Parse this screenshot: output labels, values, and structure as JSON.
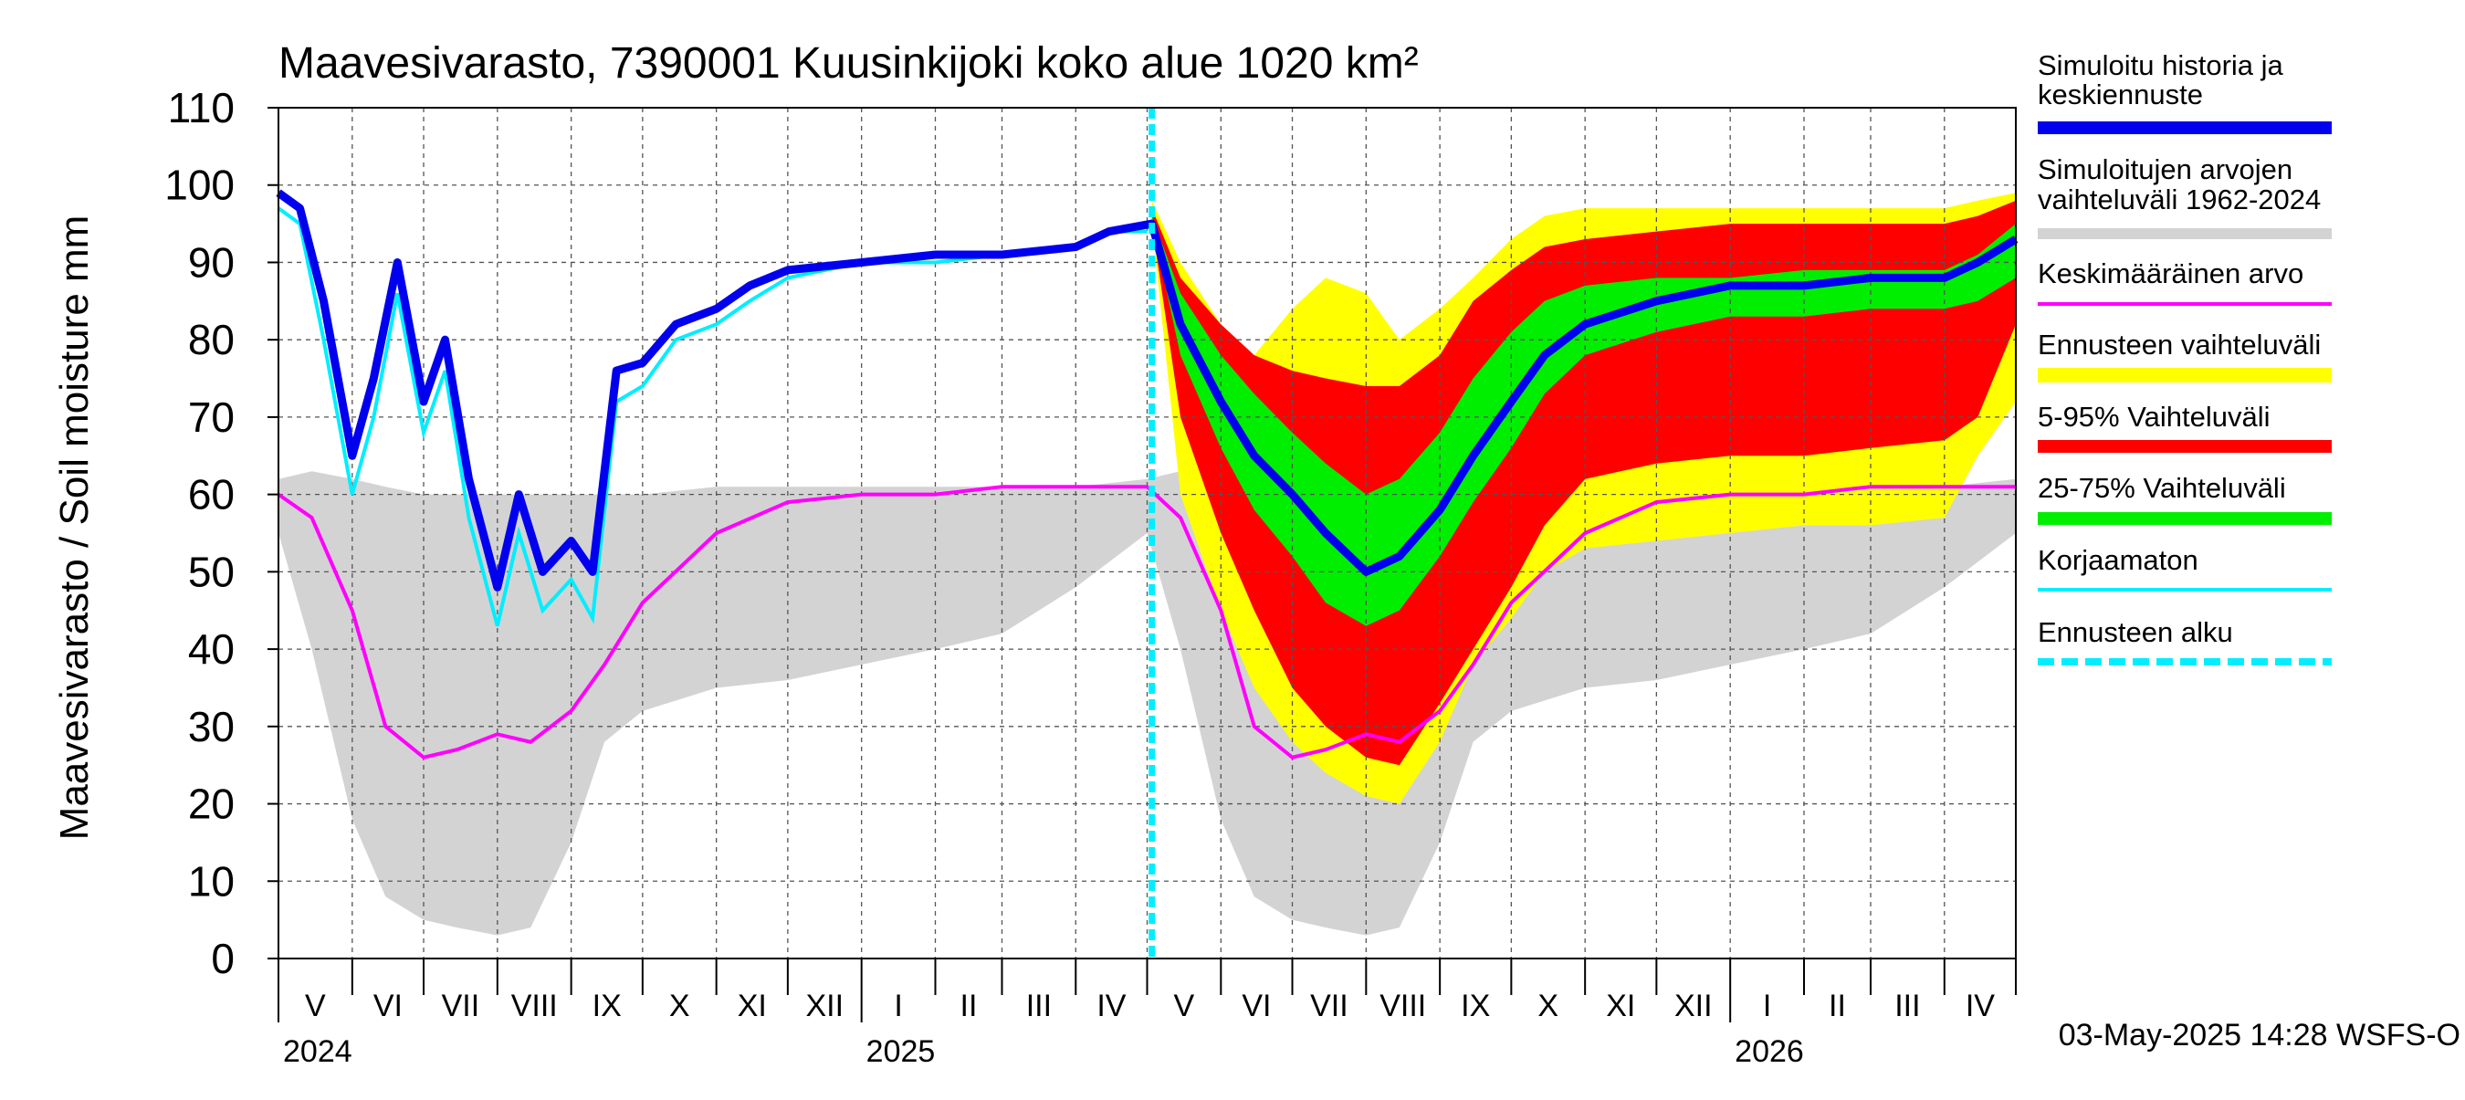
{
  "chart_data": {
    "type": "area",
    "title": "Maavesivarasto, 7390001 Kuusinkijoki koko alue 1020 km²",
    "ylabel": "Maavesivarasto / Soil moisture   mm",
    "ylim": [
      0,
      110
    ],
    "y_ticks": [
      0,
      10,
      20,
      30,
      40,
      50,
      60,
      70,
      80,
      90,
      100,
      110
    ],
    "x_start": "2024-05-01",
    "x_end": "2026-05-01",
    "months": [
      "V",
      "VI",
      "VII",
      "VIII",
      "IX",
      "X",
      "XI",
      "XII",
      "I",
      "II",
      "III",
      "IV",
      "V",
      "VI",
      "VII",
      "VIII",
      "IX",
      "X",
      "XI",
      "XII",
      "I",
      "II",
      "III",
      "IV"
    ],
    "years": [
      {
        "label": "2024",
        "date": "2024-05-01"
      },
      {
        "label": "2025",
        "date": "2025-01-01"
      },
      {
        "label": "2026",
        "date": "2026-01-01"
      }
    ],
    "forecast_start": "2025-05-03",
    "grid": true,
    "legend_position": "right",
    "colors": {
      "history": "#0000ee",
      "historical_range": "#d3d3d3",
      "mean": "#ff00ff",
      "forecast_range": "#ffff00",
      "p5_95": "#ff0000",
      "p25_75": "#00ee00",
      "uncorrected": "#00eeff",
      "forecast_start": "#00eeff"
    },
    "legend": [
      {
        "label": "Simuloitu historia ja keskiennuste",
        "key": "history"
      },
      {
        "label": "Simuloitujen arvojen vaihteluväli 1962-2024",
        "key": "historical_range"
      },
      {
        "label": "Keskimääräinen arvo",
        "key": "mean"
      },
      {
        "label": "Ennusteen vaihteluväli",
        "key": "forecast_range"
      },
      {
        "label": "5-95% Vaihteluväli",
        "key": "p5_95"
      },
      {
        "label": "25-75% Vaihteluväli",
        "key": "p25_75"
      },
      {
        "label": "Korjaamaton",
        "key": "uncorrected"
      },
      {
        "label": "Ennusteen alku",
        "key": "forecast_start"
      }
    ],
    "series": {
      "historical_range": {
        "name": "Simuloitujen arvojen vaihteluväli 1962-2024",
        "x": [
          "2024-05-01",
          "2024-05-15",
          "2024-06-01",
          "2024-06-15",
          "2024-07-01",
          "2024-07-15",
          "2024-08-01",
          "2024-08-15",
          "2024-09-01",
          "2024-09-15",
          "2024-10-01",
          "2024-11-01",
          "2024-12-01",
          "2025-01-01",
          "2025-02-01",
          "2025-03-01",
          "2025-04-01",
          "2025-05-01",
          "2025-05-15",
          "2025-06-01",
          "2025-06-15",
          "2025-07-01",
          "2025-07-15",
          "2025-08-01",
          "2025-08-15",
          "2025-09-01",
          "2025-09-15",
          "2025-10-01",
          "2025-11-01",
          "2025-12-01",
          "2026-01-01",
          "2026-02-01",
          "2026-03-01",
          "2026-04-01",
          "2026-05-01"
        ],
        "lower": [
          55,
          40,
          18,
          8,
          5,
          4,
          3,
          4,
          15,
          28,
          32,
          35,
          36,
          38,
          40,
          42,
          48,
          55,
          40,
          18,
          8,
          5,
          4,
          3,
          4,
          15,
          28,
          32,
          35,
          36,
          38,
          40,
          42,
          48,
          55
        ],
        "upper": [
          62,
          63,
          62,
          61,
          60,
          60,
          60,
          60,
          60,
          60,
          60,
          61,
          61,
          61,
          61,
          61,
          61,
          62,
          63,
          62,
          61,
          60,
          60,
          60,
          60,
          60,
          60,
          60,
          61,
          61,
          61,
          61,
          61,
          61,
          62
        ]
      },
      "mean": {
        "name": "Keskimääräinen arvo",
        "x": [
          "2024-05-01",
          "2024-05-15",
          "2024-06-01",
          "2024-06-15",
          "2024-07-01",
          "2024-07-15",
          "2024-08-01",
          "2024-08-15",
          "2024-09-01",
          "2024-09-15",
          "2024-10-01",
          "2024-11-01",
          "2024-12-01",
          "2025-01-01",
          "2025-02-01",
          "2025-03-01",
          "2025-04-01",
          "2025-05-01",
          "2025-05-15",
          "2025-06-01",
          "2025-06-15",
          "2025-07-01",
          "2025-07-15",
          "2025-08-01",
          "2025-08-15",
          "2025-09-01",
          "2025-09-15",
          "2025-10-01",
          "2025-11-01",
          "2025-12-01",
          "2026-01-01",
          "2026-02-01",
          "2026-03-01",
          "2026-04-01",
          "2026-05-01"
        ],
        "values": [
          60,
          57,
          45,
          30,
          26,
          27,
          29,
          28,
          32,
          38,
          46,
          55,
          59,
          60,
          60,
          61,
          61,
          61,
          57,
          45,
          30,
          26,
          27,
          29,
          28,
          32,
          38,
          46,
          55,
          59,
          60,
          60,
          61,
          61,
          61
        ]
      },
      "history": {
        "name": "Simuloitu historia ja keskiennuste",
        "x": [
          "2024-05-01",
          "2024-05-10",
          "2024-05-20",
          "2024-06-01",
          "2024-06-10",
          "2024-06-20",
          "2024-07-01",
          "2024-07-10",
          "2024-07-20",
          "2024-08-01",
          "2024-08-10",
          "2024-08-20",
          "2024-09-01",
          "2024-09-10",
          "2024-09-20",
          "2024-10-01",
          "2024-10-15",
          "2024-11-01",
          "2024-11-15",
          "2024-12-01",
          "2025-01-01",
          "2025-02-01",
          "2025-03-01",
          "2025-04-01",
          "2025-04-15",
          "2025-05-03",
          "2025-05-15",
          "2025-06-01",
          "2025-06-15",
          "2025-07-01",
          "2025-07-15",
          "2025-08-01",
          "2025-08-15",
          "2025-09-01",
          "2025-09-15",
          "2025-10-01",
          "2025-10-15",
          "2025-11-01",
          "2025-12-01",
          "2026-01-01",
          "2026-02-01",
          "2026-03-01",
          "2026-04-01",
          "2026-04-15",
          "2026-05-01"
        ],
        "values": [
          99,
          97,
          85,
          65,
          75,
          90,
          72,
          80,
          62,
          48,
          60,
          50,
          54,
          50,
          76,
          77,
          82,
          84,
          87,
          89,
          90,
          91,
          91,
          92,
          94,
          95,
          82,
          72,
          65,
          60,
          55,
          50,
          52,
          58,
          65,
          72,
          78,
          82,
          85,
          87,
          87,
          88,
          88,
          90,
          93
        ]
      },
      "uncorrected": {
        "name": "Korjaamaton",
        "x": [
          "2024-05-01",
          "2024-05-10",
          "2024-05-20",
          "2024-06-01",
          "2024-06-10",
          "2024-06-20",
          "2024-07-01",
          "2024-07-10",
          "2024-07-20",
          "2024-08-01",
          "2024-08-10",
          "2024-08-20",
          "2024-09-01",
          "2024-09-10",
          "2024-09-20",
          "2024-10-01",
          "2024-10-15",
          "2024-11-01",
          "2024-11-15",
          "2024-12-01",
          "2025-01-01",
          "2025-02-01",
          "2025-03-01",
          "2025-04-01",
          "2025-04-15",
          "2025-05-01"
        ],
        "values": [
          97,
          95,
          80,
          60,
          70,
          86,
          68,
          76,
          57,
          43,
          55,
          45,
          49,
          44,
          72,
          74,
          80,
          82,
          85,
          88,
          90,
          90,
          91,
          92,
          94,
          94
        ]
      },
      "forecast_range": {
        "name": "Ennusteen vaihteluväli",
        "x": [
          "2025-05-03",
          "2025-05-15",
          "2025-06-01",
          "2025-06-15",
          "2025-07-01",
          "2025-07-15",
          "2025-08-01",
          "2025-08-15",
          "2025-09-01",
          "2025-09-15",
          "2025-10-01",
          "2025-10-15",
          "2025-11-01",
          "2025-12-01",
          "2026-01-01",
          "2026-02-01",
          "2026-03-01",
          "2026-04-01",
          "2026-04-15",
          "2026-05-01"
        ],
        "lower": [
          95,
          60,
          45,
          35,
          28,
          24,
          21,
          20,
          28,
          38,
          44,
          50,
          53,
          54,
          55,
          56,
          56,
          57,
          65,
          72
        ],
        "upper": [
          98,
          90,
          82,
          78,
          84,
          88,
          86,
          80,
          84,
          88,
          93,
          96,
          97,
          97,
          97,
          97,
          97,
          97,
          98,
          99
        ]
      },
      "p5_95": {
        "name": "5-95% Vaihteluväli",
        "x": [
          "2025-05-03",
          "2025-05-15",
          "2025-06-01",
          "2025-06-15",
          "2025-07-01",
          "2025-07-15",
          "2025-08-01",
          "2025-08-15",
          "2025-09-01",
          "2025-09-15",
          "2025-10-01",
          "2025-10-15",
          "2025-11-01",
          "2025-12-01",
          "2026-01-01",
          "2026-02-01",
          "2026-03-01",
          "2026-04-01",
          "2026-04-15",
          "2026-05-01"
        ],
        "lower": [
          95,
          70,
          55,
          45,
          35,
          30,
          26,
          25,
          33,
          40,
          48,
          56,
          62,
          64,
          65,
          65,
          66,
          67,
          70,
          82
        ],
        "upper": [
          97,
          88,
          82,
          78,
          76,
          75,
          74,
          74,
          78,
          85,
          89,
          92,
          93,
          94,
          95,
          95,
          95,
          95,
          96,
          98
        ]
      },
      "p25_75": {
        "name": "25-75% Vaihteluväli",
        "x": [
          "2025-05-03",
          "2025-05-15",
          "2025-06-01",
          "2025-06-15",
          "2025-07-01",
          "2025-07-15",
          "2025-08-01",
          "2025-08-15",
          "2025-09-01",
          "2025-09-15",
          "2025-10-01",
          "2025-10-15",
          "2025-11-01",
          "2025-12-01",
          "2026-01-01",
          "2026-02-01",
          "2026-03-01",
          "2026-04-01",
          "2026-04-15",
          "2026-05-01"
        ],
        "lower": [
          95,
          78,
          66,
          58,
          52,
          46,
          43,
          45,
          52,
          59,
          66,
          73,
          78,
          81,
          83,
          83,
          84,
          84,
          85,
          88
        ],
        "upper": [
          96,
          86,
          78,
          73,
          68,
          64,
          60,
          62,
          68,
          75,
          81,
          85,
          87,
          88,
          88,
          89,
          89,
          89,
          91,
          95
        ]
      }
    },
    "timestamp": "03-May-2025 14:28 WSFS-O"
  }
}
